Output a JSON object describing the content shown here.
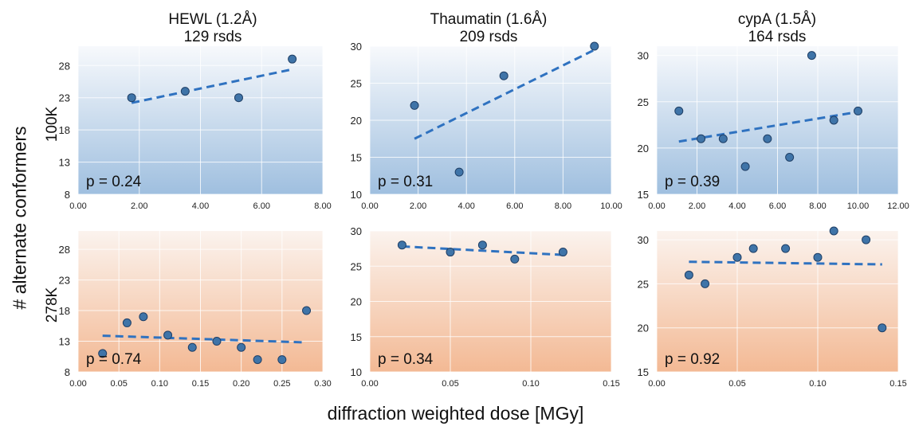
{
  "figure": {
    "y_axis_title": "# alternate conformers",
    "x_axis_title": "diffraction weighted dose [MGy]",
    "row_labels": [
      "100K",
      "278K"
    ],
    "columns": [
      {
        "title_line1": "HEWL (1.2Å)",
        "title_line2": "129 rsds"
      },
      {
        "title_line1": "Thaumatin  (1.6Å)",
        "title_line2": "209 rsds"
      },
      {
        "title_line1": "cypA  (1.5Å)",
        "title_line2": "164 rsds"
      }
    ]
  },
  "colors": {
    "point": "#3f74a8",
    "point_stroke": "#1f3f66",
    "trend": "#2f72c0",
    "cold_top": "#f7f9fc",
    "cold_bottom": "#9fbfdf",
    "warm_top": "#fbf3ee",
    "warm_bottom": "#f3b994",
    "grid": "#ffffff"
  },
  "chart_data": [
    {
      "type": "scatter",
      "panel": "HEWL 100K",
      "x": [
        1.75,
        3.5,
        5.25,
        7.0
      ],
      "y": [
        23,
        24,
        23,
        29
      ],
      "trend": {
        "x": [
          1.75,
          7.0
        ],
        "y": [
          22.2,
          27.4
        ]
      },
      "annotation": "p = 0.24",
      "xlim": [
        0,
        8
      ],
      "ylim": [
        8,
        31
      ],
      "xticks": [
        "0.00",
        "2.00",
        "4.00",
        "6.00",
        "8.00"
      ],
      "yticks": [
        "8",
        "13",
        "18",
        "23",
        "28"
      ],
      "xtick_values": [
        0,
        2,
        4,
        6,
        8
      ],
      "ytick_values": [
        8,
        13,
        18,
        23,
        28
      ],
      "background": "cold"
    },
    {
      "type": "scatter",
      "panel": "Thaumatin 100K",
      "x": [
        1.85,
        3.7,
        5.55,
        9.3
      ],
      "y": [
        22,
        13,
        26,
        30
      ],
      "trend": {
        "x": [
          1.85,
          9.3
        ],
        "y": [
          17.5,
          29.5
        ]
      },
      "annotation": "p = 0.31",
      "xlim": [
        0,
        10
      ],
      "ylim": [
        10,
        30
      ],
      "xticks": [
        "0.00",
        "2.00",
        "4.00",
        "6.00",
        "8.00",
        "10.00"
      ],
      "yticks": [
        "10",
        "15",
        "20",
        "25",
        "30"
      ],
      "xtick_values": [
        0,
        2,
        4,
        6,
        8,
        10
      ],
      "ytick_values": [
        10,
        15,
        20,
        25,
        30
      ],
      "background": "cold"
    },
    {
      "type": "scatter",
      "panel": "cypA 100K",
      "x": [
        1.1,
        2.2,
        3.3,
        4.4,
        5.5,
        6.6,
        7.7,
        8.8,
        10.0
      ],
      "y": [
        24,
        21,
        21,
        18,
        21,
        19,
        30,
        23,
        24
      ],
      "trend": {
        "x": [
          1.1,
          10.0
        ],
        "y": [
          20.7,
          23.9
        ]
      },
      "annotation": "p = 0.39",
      "xlim": [
        0,
        12
      ],
      "ylim": [
        15,
        31
      ],
      "xticks": [
        "0.00",
        "2.00",
        "4.00",
        "6.00",
        "8.00",
        "10.00",
        "12.00"
      ],
      "yticks": [
        "15",
        "20",
        "25",
        "30"
      ],
      "xtick_values": [
        0,
        2,
        4,
        6,
        8,
        10,
        12
      ],
      "ytick_values": [
        15,
        20,
        25,
        30
      ],
      "background": "cold"
    },
    {
      "type": "scatter",
      "panel": "HEWL 278K",
      "x": [
        0.03,
        0.06,
        0.08,
        0.11,
        0.14,
        0.17,
        0.2,
        0.22,
        0.25,
        0.28
      ],
      "y": [
        11,
        16,
        17,
        14,
        12,
        13,
        12,
        10,
        10,
        18
      ],
      "trend": {
        "x": [
          0.03,
          0.28
        ],
        "y": [
          13.9,
          12.8
        ]
      },
      "annotation": "p = 0.74",
      "xlim": [
        0,
        0.3
      ],
      "ylim": [
        8,
        31
      ],
      "xticks": [
        "0.00",
        "0.05",
        "0.10",
        "0.15",
        "0.20",
        "0.25",
        "0.30"
      ],
      "yticks": [
        "8",
        "13",
        "18",
        "23",
        "28"
      ],
      "xtick_values": [
        0,
        0.05,
        0.1,
        0.15,
        0.2,
        0.25,
        0.3
      ],
      "ytick_values": [
        8,
        13,
        18,
        23,
        28
      ],
      "background": "warm"
    },
    {
      "type": "scatter",
      "panel": "Thaumatin 278K",
      "x": [
        0.02,
        0.05,
        0.07,
        0.09,
        0.12
      ],
      "y": [
        28,
        27,
        28,
        26,
        27
      ],
      "trend": {
        "x": [
          0.02,
          0.12
        ],
        "y": [
          27.8,
          26.6
        ]
      },
      "annotation": "p = 0.34",
      "xlim": [
        0,
        0.15
      ],
      "ylim": [
        10,
        30
      ],
      "xticks": [
        "0.00",
        "0.05",
        "0.10",
        "0.15"
      ],
      "yticks": [
        "10",
        "15",
        "20",
        "25",
        "30"
      ],
      "xtick_values": [
        0,
        0.05,
        0.1,
        0.15
      ],
      "ytick_values": [
        10,
        15,
        20,
        25,
        30
      ],
      "background": "warm"
    },
    {
      "type": "scatter",
      "panel": "cypA 278K",
      "x": [
        0.02,
        0.03,
        0.05,
        0.06,
        0.08,
        0.1,
        0.11,
        0.13,
        0.14
      ],
      "y": [
        26,
        25,
        28,
        29,
        29,
        28,
        31,
        30,
        20
      ],
      "trend": {
        "x": [
          0.02,
          0.14
        ],
        "y": [
          27.5,
          27.2
        ]
      },
      "annotation": "p = 0.92",
      "xlim": [
        0,
        0.15
      ],
      "ylim": [
        15,
        31
      ],
      "xticks": [
        "0.00",
        "0.05",
        "0.10",
        "0.15"
      ],
      "yticks": [
        "15",
        "20",
        "25",
        "30"
      ],
      "xtick_values": [
        0,
        0.05,
        0.1,
        0.15
      ],
      "ytick_values": [
        15,
        20,
        25,
        30
      ],
      "background": "warm"
    }
  ]
}
